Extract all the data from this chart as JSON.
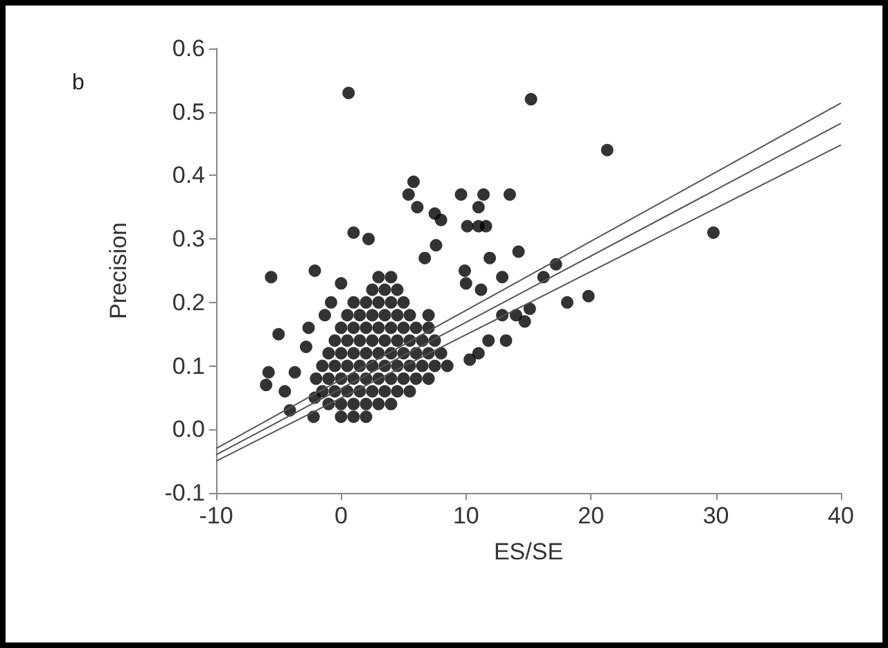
{
  "chart_data": {
    "type": "scatter",
    "xlabel": "ES/SE",
    "ylabel": "Precision",
    "annotations": [
      "b"
    ],
    "xlim": [
      -10,
      40
    ],
    "xticks": [
      -10,
      0,
      10,
      20,
      30,
      40
    ],
    "ylim": [
      -0.1,
      0.6
    ],
    "yticks": [
      -0.1,
      {
        "value": 0,
        "label": "0.0"
      },
      0.1,
      0.2,
      0.3,
      0.4,
      0.5,
      0.6
    ],
    "grid": false,
    "marker": "circle",
    "series": [
      {
        "color": "#000000",
        "x": [
          0.6,
          15.2,
          21.3,
          29.8,
          5.8,
          5.4,
          6.1,
          7.5,
          8.0,
          9.6,
          11.4,
          13.5,
          11.0,
          10.1,
          11.0,
          11.6,
          1.0,
          2.2,
          7.6,
          14.2,
          11.9,
          6.7,
          -5.6,
          -2.1,
          17.2,
          16.2,
          12.9,
          9.9,
          10.0,
          11.2,
          18.1,
          19.8,
          12.9,
          14.0,
          15.1,
          14.7,
          11.8,
          13.2,
          11.0,
          10.3,
          -6.0,
          -5.8,
          -5.0,
          -4.5,
          -4.1,
          -3.7,
          -2.6,
          -2.8,
          -1.3,
          -0.8,
          0,
          -2.2,
          -2.1,
          0,
          1,
          2,
          -1,
          0,
          1,
          2,
          3,
          4,
          -1.5,
          -0.5,
          0.5,
          1.5,
          2.5,
          3.5,
          4.5,
          5.5,
          -2,
          -1,
          0,
          1,
          2,
          3,
          4,
          5,
          6,
          7,
          -1.5,
          -0.5,
          0.5,
          1.5,
          2.5,
          3.5,
          4.5,
          5.5,
          6.5,
          7.5,
          8.5,
          -1,
          0,
          1,
          2,
          3,
          4,
          5,
          6,
          7,
          8,
          -0.5,
          0.5,
          1.5,
          2.5,
          3.5,
          4.5,
          5.5,
          6.5,
          7.5,
          0,
          1,
          2,
          3,
          4,
          5,
          6,
          7,
          0.5,
          1.5,
          2.5,
          3.5,
          4.5,
          5.5,
          7,
          1,
          2,
          3,
          4,
          5,
          2.5,
          3.5,
          4.5,
          3,
          4
        ],
        "values": [
          0.53,
          0.52,
          0.44,
          0.31,
          0.39,
          0.37,
          0.35,
          0.34,
          0.33,
          0.37,
          0.37,
          0.37,
          0.35,
          0.32,
          0.32,
          0.32,
          0.31,
          0.3,
          0.29,
          0.28,
          0.27,
          0.27,
          0.24,
          0.25,
          0.26,
          0.24,
          0.24,
          0.25,
          0.23,
          0.22,
          0.2,
          0.21,
          0.18,
          0.18,
          0.19,
          0.17,
          0.14,
          0.14,
          0.12,
          0.11,
          0.07,
          0.09,
          0.15,
          0.06,
          0.03,
          0.09,
          0.16,
          0.13,
          0.18,
          0.2,
          0.23,
          0.02,
          0.05,
          0.02,
          0.02,
          0.02,
          0.04,
          0.04,
          0.04,
          0.04,
          0.04,
          0.04,
          0.06,
          0.06,
          0.06,
          0.06,
          0.06,
          0.06,
          0.06,
          0.06,
          0.08,
          0.08,
          0.08,
          0.08,
          0.08,
          0.08,
          0.08,
          0.08,
          0.08,
          0.08,
          0.1,
          0.1,
          0.1,
          0.1,
          0.1,
          0.1,
          0.1,
          0.1,
          0.1,
          0.1,
          0.1,
          0.12,
          0.12,
          0.12,
          0.12,
          0.12,
          0.12,
          0.12,
          0.12,
          0.12,
          0.12,
          0.14,
          0.14,
          0.14,
          0.14,
          0.14,
          0.14,
          0.14,
          0.14,
          0.14,
          0.16,
          0.16,
          0.16,
          0.16,
          0.16,
          0.16,
          0.16,
          0.16,
          0.18,
          0.18,
          0.18,
          0.18,
          0.18,
          0.18,
          0.18,
          0.2,
          0.2,
          0.2,
          0.2,
          0.2,
          0.22,
          0.22,
          0.22,
          0.24,
          0.24
        ]
      },
      {
        "type": "line",
        "marker": "none",
        "color": "#555555",
        "x": [
          -10,
          40
        ],
        "values": [
          -0.03,
          0.514
        ]
      },
      {
        "type": "line",
        "marker": "none",
        "color": "#555555",
        "x": [
          -10,
          40
        ],
        "values": [
          -0.04,
          0.482
        ]
      },
      {
        "type": "line",
        "marker": "none",
        "color": "#555555",
        "x": [
          -10,
          40
        ],
        "values": [
          -0.05,
          0.448
        ]
      }
    ]
  }
}
